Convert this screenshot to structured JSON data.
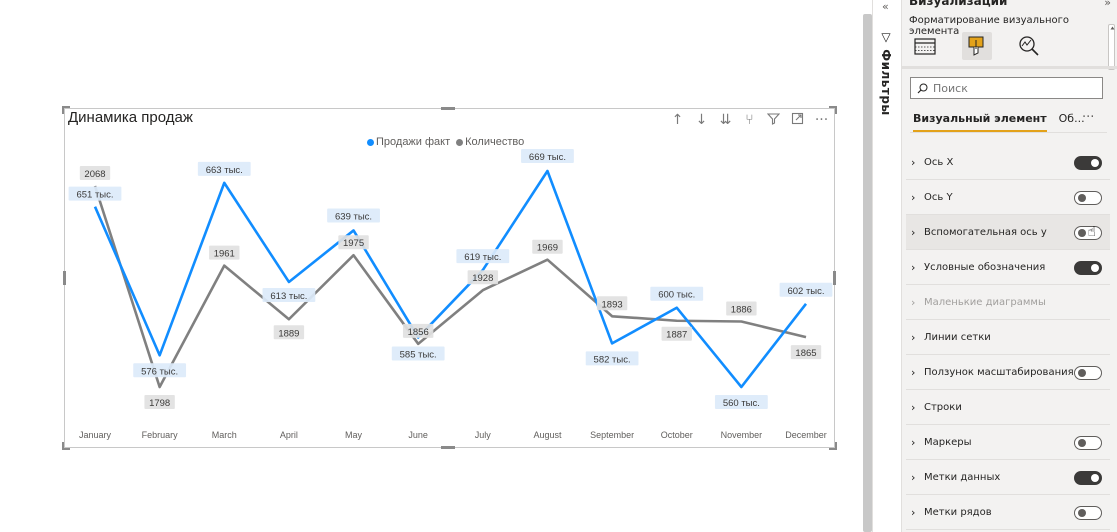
{
  "chart_data": {
    "type": "line",
    "title": "Динамика продаж",
    "categories": [
      "January",
      "February",
      "March",
      "April",
      "May",
      "June",
      "July",
      "August",
      "September",
      "October",
      "November",
      "December"
    ],
    "series": [
      {
        "name": "Продажи факт",
        "color": "#118dff",
        "values": [
          651000,
          576000,
          663000,
          613000,
          639000,
          585000,
          619000,
          669000,
          582000,
          600000,
          560000,
          602000
        ],
        "data_labels": [
          "651 тыс.",
          "576 тыс.",
          "663 тыс.",
          "613 тыс.",
          "639 тыс.",
          "585 тыс.",
          "619 тыс.",
          "669 тыс.",
          "582 тыс.",
          "600 тыс.",
          "560 тыс.",
          "602 тыс."
        ]
      },
      {
        "name": "Количество",
        "color": "#808080",
        "values": [
          2068,
          1798,
          1961,
          1889,
          1975,
          1856,
          1928,
          1969,
          1893,
          1887,
          1886,
          1865
        ],
        "data_labels": [
          "2068",
          "1798",
          "1961",
          "1889",
          "1975",
          "1856",
          "1928",
          "1969",
          "1893",
          "1887",
          "1886",
          "1865"
        ]
      }
    ],
    "legend_position": "top-center",
    "grid": false,
    "secondary_axis": false
  },
  "canvas": {
    "visual_header_icons": [
      "arrow-up-icon",
      "arrow-down-icon",
      "double-arrow-down-icon",
      "expand-hierarchy-icon",
      "filter-icon",
      "focus-mode-icon",
      "more-options-icon"
    ]
  },
  "filters_pane": {
    "label": "Фильтры",
    "collapse_glyph": "«"
  },
  "viz_pane": {
    "title": "Визуализации",
    "expand_glyph": "»",
    "subtitle": "Форматирование визуального элемента",
    "search_placeholder": "Поиск",
    "subtab_visual": "Визуальный элемент",
    "subtab_general": "Об...",
    "more_glyph": "···",
    "accent": "#e3a21a",
    "cards": [
      {
        "label": "Ось X",
        "toggle": "on"
      },
      {
        "label": "Ось Y",
        "toggle": "off"
      },
      {
        "label": "Вспомогательная ось y",
        "toggle": "off"
      },
      {
        "label": "Условные обозначения",
        "toggle": "on"
      },
      {
        "label": "Маленькие диаграммы",
        "toggle": "none"
      },
      {
        "label": "Линии сетки",
        "toggle": "none"
      },
      {
        "label": "Ползунок масштабирования",
        "toggle": "off"
      },
      {
        "label": "Строки",
        "toggle": "none"
      },
      {
        "label": "Маркеры",
        "toggle": "off"
      },
      {
        "label": "Метки данных",
        "toggle": "on"
      },
      {
        "label": "Метки рядов",
        "toggle": "off"
      }
    ]
  }
}
